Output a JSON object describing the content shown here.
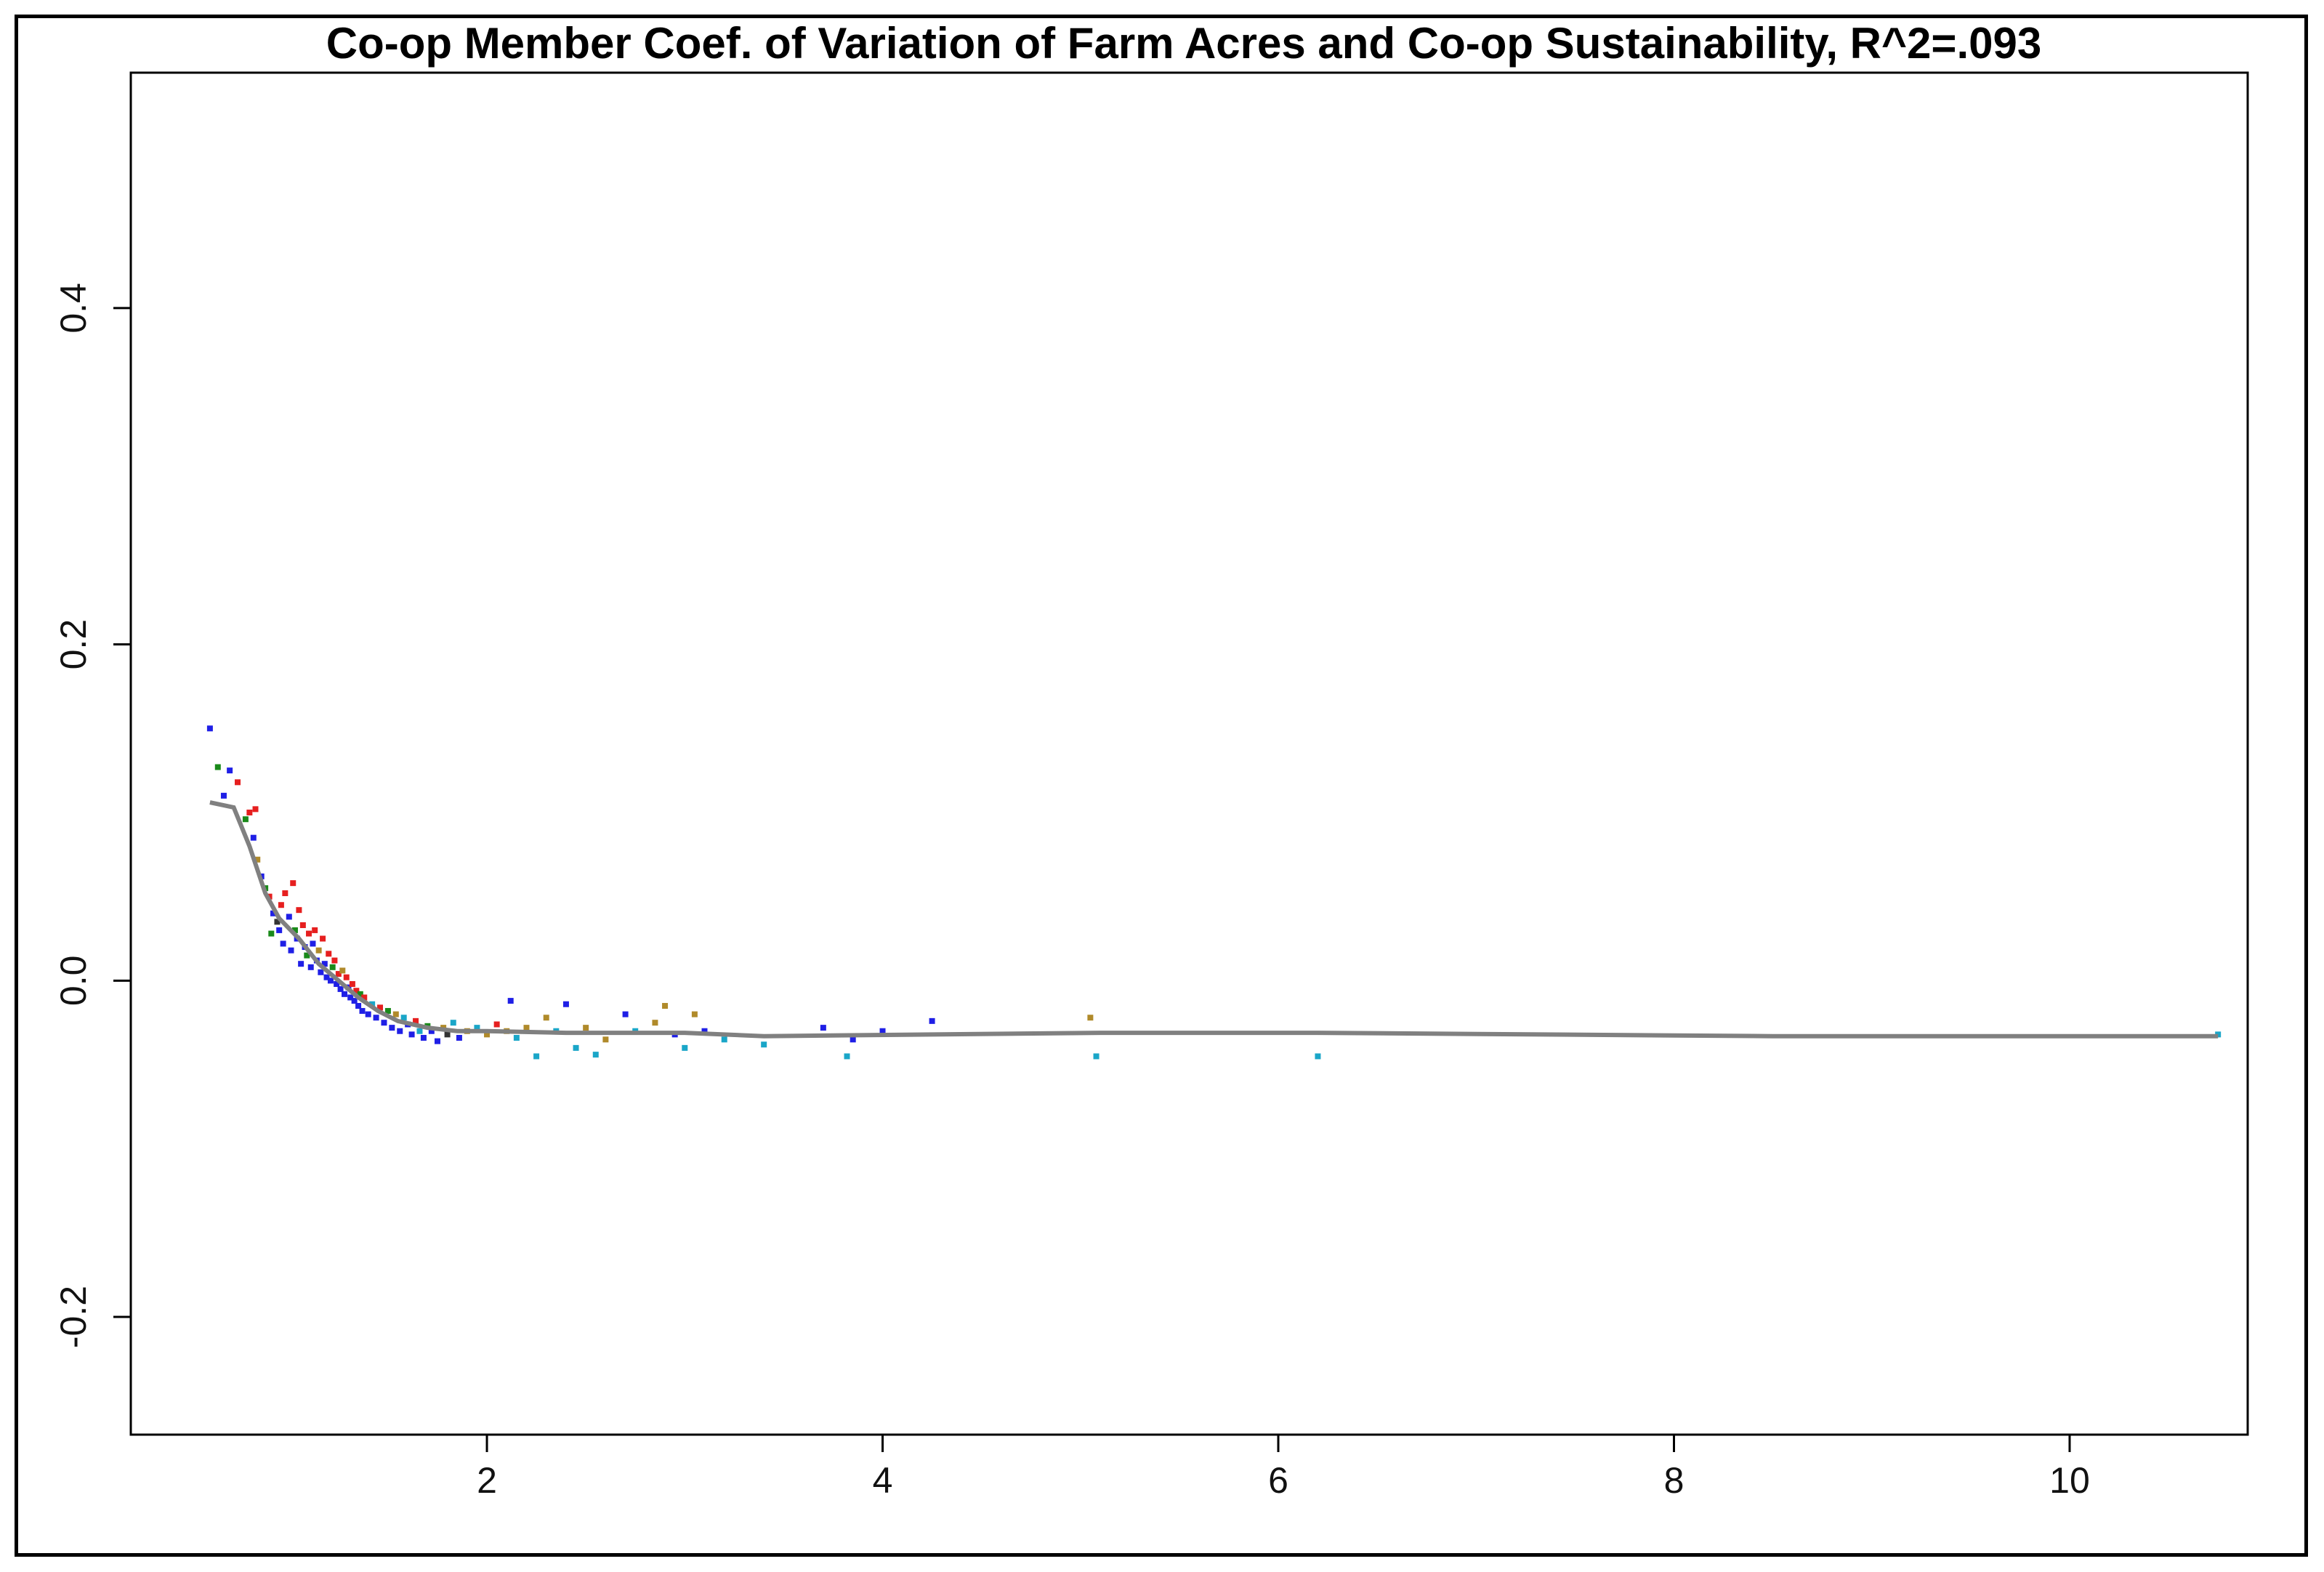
{
  "chart_data": {
    "type": "scatter",
    "title": "Co-op Member Coef. of Variation of Farm Acres and Co-op Sustainability, R^2=.093",
    "xlabel": "",
    "ylabel": "",
    "xlim": [
      0.2,
      10.9
    ],
    "ylim": [
      -0.27,
      0.54
    ],
    "x_ticks": [
      2,
      4,
      6,
      8,
      10
    ],
    "x_tick_labels": [
      "2",
      "4",
      "6",
      "8",
      "10"
    ],
    "y_ticks": [
      -0.2,
      0.0,
      0.2,
      0.4
    ],
    "y_tick_labels": [
      "-0.2",
      "0.0",
      "0.2",
      "0.4"
    ],
    "grid": false,
    "legend": "none",
    "colors": {
      "points": [
        "#1f1fe6",
        "#e61f1f",
        "#1a8a1a",
        "#b08a2a",
        "#1aa6c8",
        "#333333"
      ],
      "fit_line": "#808080"
    },
    "series": [
      {
        "values": [
          [
            0.6,
            0.15,
            0
          ],
          [
            0.64,
            0.127,
            2
          ],
          [
            0.67,
            0.11,
            0
          ],
          [
            0.7,
            0.125,
            0
          ],
          [
            0.74,
            0.118,
            1
          ],
          [
            0.78,
            0.096,
            2
          ],
          [
            0.8,
            0.1,
            1
          ],
          [
            0.82,
            0.085,
            0
          ],
          [
            0.83,
            0.102,
            1
          ],
          [
            0.84,
            0.072,
            3
          ],
          [
            0.86,
            0.062,
            0
          ],
          [
            0.88,
            0.055,
            2
          ],
          [
            0.9,
            0.05,
            1
          ],
          [
            0.91,
            0.028,
            2
          ],
          [
            0.92,
            0.04,
            0
          ],
          [
            0.94,
            0.035,
            5
          ],
          [
            0.95,
            0.03,
            0
          ],
          [
            0.96,
            0.045,
            1
          ],
          [
            0.97,
            0.022,
            0
          ],
          [
            0.98,
            0.052,
            1
          ],
          [
            1.0,
            0.038,
            0
          ],
          [
            1.01,
            0.018,
            0
          ],
          [
            1.02,
            0.058,
            1
          ],
          [
            1.03,
            0.03,
            2
          ],
          [
            1.04,
            0.025,
            0
          ],
          [
            1.05,
            0.042,
            1
          ],
          [
            1.06,
            0.01,
            0
          ],
          [
            1.07,
            0.033,
            1
          ],
          [
            1.08,
            0.02,
            0
          ],
          [
            1.09,
            0.015,
            2
          ],
          [
            1.1,
            0.028,
            1
          ],
          [
            1.11,
            0.008,
            0
          ],
          [
            1.12,
            0.022,
            0
          ],
          [
            1.13,
            0.03,
            1
          ],
          [
            1.14,
            0.012,
            0
          ],
          [
            1.15,
            0.018,
            3
          ],
          [
            1.16,
            0.005,
            0
          ],
          [
            1.17,
            0.025,
            1
          ],
          [
            1.18,
            0.01,
            0
          ],
          [
            1.19,
            0.002,
            0
          ],
          [
            1.2,
            0.016,
            1
          ],
          [
            1.21,
            0.0,
            0
          ],
          [
            1.22,
            0.008,
            2
          ],
          [
            1.23,
            0.012,
            1
          ],
          [
            1.24,
            -0.002,
            0
          ],
          [
            1.25,
            0.004,
            1
          ],
          [
            1.26,
            -0.005,
            0
          ],
          [
            1.27,
            0.006,
            3
          ],
          [
            1.28,
            -0.008,
            0
          ],
          [
            1.29,
            0.002,
            1
          ],
          [
            1.3,
            -0.004,
            0
          ],
          [
            1.31,
            -0.01,
            0
          ],
          [
            1.32,
            -0.002,
            1
          ],
          [
            1.33,
            -0.012,
            0
          ],
          [
            1.34,
            -0.006,
            1
          ],
          [
            1.35,
            -0.015,
            0
          ],
          [
            1.36,
            -0.008,
            2
          ],
          [
            1.37,
            -0.018,
            0
          ],
          [
            1.38,
            -0.01,
            1
          ],
          [
            1.4,
            -0.02,
            0
          ],
          [
            1.42,
            -0.014,
            4
          ],
          [
            1.44,
            -0.022,
            0
          ],
          [
            1.46,
            -0.016,
            1
          ],
          [
            1.48,
            -0.025,
            0
          ],
          [
            1.5,
            -0.018,
            2
          ],
          [
            1.52,
            -0.028,
            0
          ],
          [
            1.54,
            -0.02,
            3
          ],
          [
            1.56,
            -0.03,
            0
          ],
          [
            1.58,
            -0.022,
            4
          ],
          [
            1.6,
            -0.026,
            0
          ],
          [
            1.62,
            -0.032,
            0
          ],
          [
            1.64,
            -0.024,
            1
          ],
          [
            1.66,
            -0.03,
            4
          ],
          [
            1.68,
            -0.034,
            0
          ],
          [
            1.7,
            -0.027,
            2
          ],
          [
            1.72,
            -0.03,
            0
          ],
          [
            1.75,
            -0.036,
            0
          ],
          [
            1.78,
            -0.028,
            3
          ],
          [
            1.8,
            -0.032,
            5
          ],
          [
            1.83,
            -0.025,
            4
          ],
          [
            1.86,
            -0.034,
            0
          ],
          [
            1.9,
            -0.03,
            3
          ],
          [
            1.95,
            -0.028,
            4
          ],
          [
            2.0,
            -0.032,
            3
          ],
          [
            2.05,
            -0.026,
            1
          ],
          [
            2.1,
            -0.03,
            3
          ],
          [
            2.12,
            -0.012,
            0
          ],
          [
            2.15,
            -0.034,
            4
          ],
          [
            2.2,
            -0.028,
            3
          ],
          [
            2.25,
            -0.045,
            4
          ],
          [
            2.3,
            -0.022,
            3
          ],
          [
            2.35,
            -0.03,
            4
          ],
          [
            2.4,
            -0.014,
            0
          ],
          [
            2.45,
            -0.04,
            4
          ],
          [
            2.5,
            -0.028,
            3
          ],
          [
            2.55,
            -0.044,
            4
          ],
          [
            2.6,
            -0.035,
            3
          ],
          [
            2.7,
            -0.02,
            0
          ],
          [
            2.75,
            -0.03,
            4
          ],
          [
            2.85,
            -0.025,
            3
          ],
          [
            2.9,
            -0.015,
            3
          ],
          [
            2.95,
            -0.032,
            0
          ],
          [
            3.0,
            -0.04,
            4
          ],
          [
            3.05,
            -0.02,
            3
          ],
          [
            3.1,
            -0.03,
            0
          ],
          [
            3.2,
            -0.035,
            4
          ],
          [
            3.4,
            -0.038,
            4
          ],
          [
            3.7,
            -0.028,
            0
          ],
          [
            3.82,
            -0.045,
            4
          ],
          [
            3.85,
            -0.035,
            0
          ],
          [
            4.0,
            -0.03,
            0
          ],
          [
            4.25,
            -0.024,
            0
          ],
          [
            5.05,
            -0.022,
            3
          ],
          [
            5.08,
            -0.045,
            4
          ],
          [
            6.2,
            -0.045,
            4
          ],
          [
            10.75,
            -0.032,
            4
          ]
        ]
      }
    ],
    "fit_line": {
      "color": "#808080",
      "x": [
        0.6,
        0.72,
        0.8,
        0.88,
        0.95,
        1.05,
        1.15,
        1.25,
        1.35,
        1.45,
        1.55,
        1.7,
        1.85,
        2.0,
        2.4,
        3.0,
        3.4,
        5.1,
        6.2,
        8.5,
        10.75
      ],
      "y": [
        0.106,
        0.103,
        0.08,
        0.052,
        0.037,
        0.025,
        0.01,
        0.0,
        -0.01,
        -0.018,
        -0.024,
        -0.028,
        -0.03,
        -0.03,
        -0.031,
        -0.031,
        -0.033,
        -0.031,
        -0.031,
        -0.033,
        -0.033
      ]
    }
  }
}
